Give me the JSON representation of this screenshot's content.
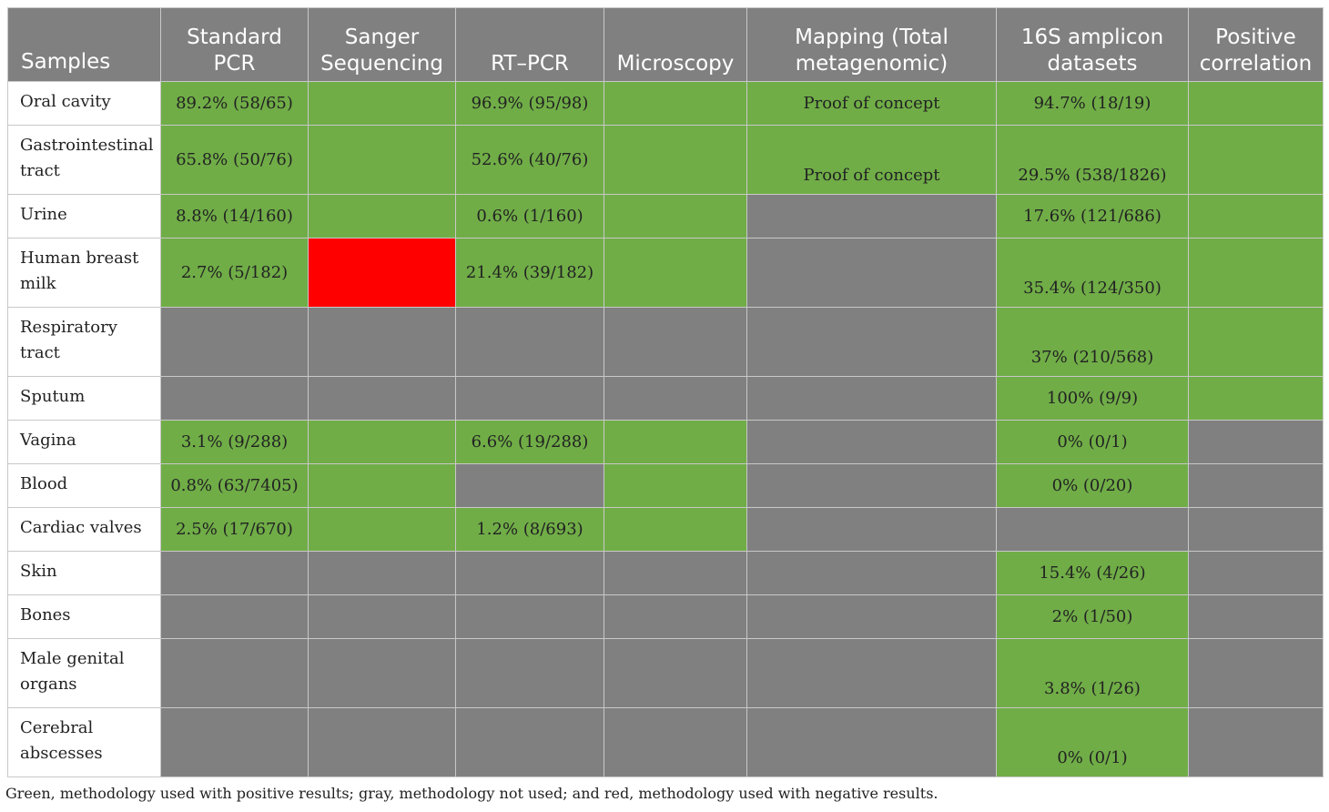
{
  "colors": {
    "green": "#70ad47",
    "gray": "#808080",
    "red": "#ff0000"
  },
  "headers": [
    "Samples",
    "Standard PCR",
    "Sanger Sequencing",
    "RT–PCR",
    "Microscopy",
    "Mapping (Total metagenomic)",
    "16S amplicon datasets",
    "Positive correlation"
  ],
  "rows": [
    {
      "sample": "Oral cavity",
      "cells": [
        {
          "c": "g",
          "t": "89.2% (58/65)"
        },
        {
          "c": "g",
          "t": ""
        },
        {
          "c": "g",
          "t": "96.9% (95/98)"
        },
        {
          "c": "g",
          "t": ""
        },
        {
          "c": "g",
          "t": "Proof of concept"
        },
        {
          "c": "g",
          "t": "94.7% (18/19)"
        },
        {
          "c": "g",
          "t": ""
        }
      ]
    },
    {
      "sample": "Gastrointestinal tract",
      "cells": [
        {
          "c": "g",
          "t": "65.8% (50/76)"
        },
        {
          "c": "g",
          "t": ""
        },
        {
          "c": "g",
          "t": "52.6% (40/76)"
        },
        {
          "c": "g",
          "t": ""
        },
        {
          "c": "g",
          "t": "Proof of concept"
        },
        {
          "c": "g",
          "t": "29.5% (538/1826)"
        },
        {
          "c": "g",
          "t": ""
        }
      ]
    },
    {
      "sample": "Urine",
      "cells": [
        {
          "c": "g",
          "t": "8.8% (14/160)"
        },
        {
          "c": "g",
          "t": ""
        },
        {
          "c": "g",
          "t": "0.6% (1/160)"
        },
        {
          "c": "g",
          "t": ""
        },
        {
          "c": "y",
          "t": ""
        },
        {
          "c": "g",
          "t": "17.6% (121/686)"
        },
        {
          "c": "g",
          "t": ""
        }
      ]
    },
    {
      "sample": "Human breast milk",
      "cells": [
        {
          "c": "g",
          "t": "2.7% (5/182)"
        },
        {
          "c": "r",
          "t": ""
        },
        {
          "c": "g",
          "t": "21.4% (39/182)"
        },
        {
          "c": "g",
          "t": ""
        },
        {
          "c": "y",
          "t": ""
        },
        {
          "c": "g",
          "t": "35.4% (124/350)"
        },
        {
          "c": "g",
          "t": ""
        }
      ]
    },
    {
      "sample": "Respiratory tract",
      "cells": [
        {
          "c": "y",
          "t": ""
        },
        {
          "c": "y",
          "t": ""
        },
        {
          "c": "y",
          "t": ""
        },
        {
          "c": "y",
          "t": ""
        },
        {
          "c": "y",
          "t": ""
        },
        {
          "c": "g",
          "t": "37% (210/568)"
        },
        {
          "c": "g",
          "t": ""
        }
      ]
    },
    {
      "sample": "Sputum",
      "cells": [
        {
          "c": "y",
          "t": ""
        },
        {
          "c": "y",
          "t": ""
        },
        {
          "c": "y",
          "t": ""
        },
        {
          "c": "y",
          "t": ""
        },
        {
          "c": "y",
          "t": ""
        },
        {
          "c": "g",
          "t": "100% (9/9)"
        },
        {
          "c": "g",
          "t": ""
        }
      ]
    },
    {
      "sample": "Vagina",
      "cells": [
        {
          "c": "g",
          "t": "3.1% (9/288)"
        },
        {
          "c": "g",
          "t": ""
        },
        {
          "c": "g",
          "t": "6.6% (19/288)"
        },
        {
          "c": "g",
          "t": ""
        },
        {
          "c": "y",
          "t": ""
        },
        {
          "c": "g",
          "t": "0% (0/1)"
        },
        {
          "c": "y",
          "t": ""
        }
      ]
    },
    {
      "sample": "Blood",
      "cells": [
        {
          "c": "g",
          "t": "0.8% (63/7405)"
        },
        {
          "c": "g",
          "t": ""
        },
        {
          "c": "y",
          "t": ""
        },
        {
          "c": "g",
          "t": ""
        },
        {
          "c": "y",
          "t": ""
        },
        {
          "c": "g",
          "t": "0% (0/20)"
        },
        {
          "c": "y",
          "t": ""
        }
      ]
    },
    {
      "sample": "Cardiac valves",
      "cells": [
        {
          "c": "g",
          "t": "2.5% (17/670)"
        },
        {
          "c": "g",
          "t": ""
        },
        {
          "c": "g",
          "t": "1.2% (8/693)"
        },
        {
          "c": "g",
          "t": ""
        },
        {
          "c": "y",
          "t": ""
        },
        {
          "c": "y",
          "t": ""
        },
        {
          "c": "y",
          "t": ""
        }
      ]
    },
    {
      "sample": "Skin",
      "cells": [
        {
          "c": "y",
          "t": ""
        },
        {
          "c": "y",
          "t": ""
        },
        {
          "c": "y",
          "t": ""
        },
        {
          "c": "y",
          "t": ""
        },
        {
          "c": "y",
          "t": ""
        },
        {
          "c": "g",
          "t": "15.4% (4/26)"
        },
        {
          "c": "y",
          "t": ""
        }
      ]
    },
    {
      "sample": "Bones",
      "cells": [
        {
          "c": "y",
          "t": ""
        },
        {
          "c": "y",
          "t": ""
        },
        {
          "c": "y",
          "t": ""
        },
        {
          "c": "y",
          "t": ""
        },
        {
          "c": "y",
          "t": ""
        },
        {
          "c": "g",
          "t": "2% (1/50)"
        },
        {
          "c": "y",
          "t": ""
        }
      ]
    },
    {
      "sample": "Male genital organs",
      "cells": [
        {
          "c": "y",
          "t": ""
        },
        {
          "c": "y",
          "t": ""
        },
        {
          "c": "y",
          "t": ""
        },
        {
          "c": "y",
          "t": ""
        },
        {
          "c": "y",
          "t": ""
        },
        {
          "c": "g",
          "t": "3.8% (1/26)"
        },
        {
          "c": "y",
          "t": ""
        }
      ]
    },
    {
      "sample": "Cerebral abscesses",
      "cells": [
        {
          "c": "y",
          "t": ""
        },
        {
          "c": "y",
          "t": ""
        },
        {
          "c": "y",
          "t": ""
        },
        {
          "c": "y",
          "t": ""
        },
        {
          "c": "y",
          "t": ""
        },
        {
          "c": "g",
          "t": "0% (0/1)"
        },
        {
          "c": "y",
          "t": ""
        }
      ]
    }
  ],
  "caption": "Green, methodology used with positive results; gray, methodology not used; and red, methodology used with negative results."
}
